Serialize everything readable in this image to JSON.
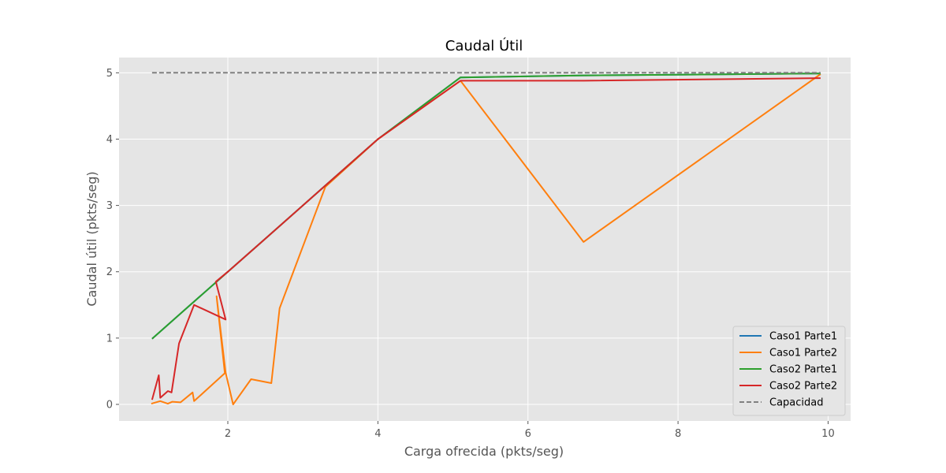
{
  "chart_data": {
    "type": "line",
    "title": "Caudal Útil",
    "xlabel": "Carga ofrecida (pkts/seg)",
    "ylabel": "Caudal útil (pkts/seg)",
    "xlim": [
      0.55,
      10.3
    ],
    "ylim": [
      -0.25,
      5.23
    ],
    "xticks": [
      2,
      4,
      6,
      8,
      10
    ],
    "yticks": [
      0,
      1,
      2,
      3,
      4,
      5
    ],
    "grid": true,
    "background": "#e5e5e5",
    "legend_position": "lower right",
    "series": [
      {
        "name": "Caso1 Parte1",
        "color": "#1f77b4",
        "dash": "solid",
        "x": [
          0.99,
          1.5,
          2.0,
          2.5,
          3.3,
          4.0,
          5.1,
          6.7,
          9.9
        ],
        "y": [
          0.99,
          1.5,
          2.0,
          2.5,
          3.3,
          4.0,
          4.93,
          4.96,
          4.99
        ]
      },
      {
        "name": "Caso1 Parte2",
        "color": "#ff7f0e",
        "dash": "solid",
        "x": [
          0.98,
          1.1,
          1.2,
          1.26,
          1.37,
          1.53,
          1.55,
          1.96,
          1.85,
          1.97,
          2.07,
          2.31,
          2.58,
          2.69,
          3.3,
          4.0,
          5.1,
          6.74,
          9.9
        ],
        "y": [
          0.01,
          0.05,
          0.01,
          0.04,
          0.03,
          0.18,
          0.05,
          0.47,
          1.63,
          0.48,
          0.0,
          0.38,
          0.32,
          1.45,
          3.28,
          4.0,
          4.88,
          2.45,
          4.98
        ]
      },
      {
        "name": "Caso2 Parte1",
        "color": "#2ca02c",
        "dash": "solid",
        "x": [
          0.99,
          1.5,
          2.0,
          2.5,
          3.3,
          4.0,
          5.1,
          6.7,
          9.9
        ],
        "y": [
          0.99,
          1.5,
          2.0,
          2.5,
          3.3,
          4.0,
          4.93,
          4.96,
          4.99
        ]
      },
      {
        "name": "Caso2 Parte2",
        "color": "#d62728",
        "dash": "solid",
        "x": [
          0.99,
          1.08,
          1.1,
          1.2,
          1.25,
          1.35,
          1.55,
          1.97,
          1.84,
          2.0,
          2.5,
          3.3,
          4.0,
          5.1,
          6.74,
          9.9
        ],
        "y": [
          0.07,
          0.44,
          0.1,
          0.2,
          0.18,
          0.92,
          1.5,
          1.28,
          1.85,
          2.0,
          2.5,
          3.3,
          4.0,
          4.88,
          4.88,
          4.92
        ]
      },
      {
        "name": "Capacidad",
        "color": "#808080",
        "dash": "dashed",
        "x": [
          0.99,
          9.9
        ],
        "y": [
          5.0,
          5.0
        ]
      }
    ]
  }
}
